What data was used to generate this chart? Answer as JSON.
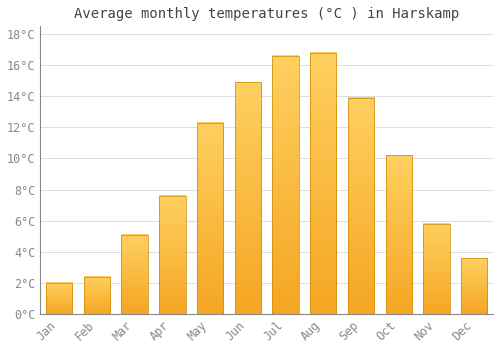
{
  "title": "Average monthly temperatures (°C ) in Harskamp",
  "months": [
    "Jan",
    "Feb",
    "Mar",
    "Apr",
    "May",
    "Jun",
    "Jul",
    "Aug",
    "Sep",
    "Oct",
    "Nov",
    "Dec"
  ],
  "values": [
    2.0,
    2.4,
    5.1,
    7.6,
    12.3,
    14.9,
    16.6,
    16.8,
    13.9,
    10.2,
    5.8,
    3.6
  ],
  "bar_color": "#FFA500",
  "bar_edge_color": "#CC8800",
  "ylim": [
    0,
    18.5
  ],
  "yticks": [
    0,
    2,
    4,
    6,
    8,
    10,
    12,
    14,
    16,
    18
  ],
  "ytick_labels": [
    "0°C",
    "2°C",
    "4°C",
    "6°C",
    "8°C",
    "10°C",
    "12°C",
    "14°C",
    "16°C",
    "18°C"
  ],
  "background_color": "#ffffff",
  "grid_color": "#dddddd",
  "title_fontsize": 10,
  "tick_fontsize": 8.5,
  "tick_color": "#888888",
  "title_color": "#444444",
  "bar_width": 0.7
}
